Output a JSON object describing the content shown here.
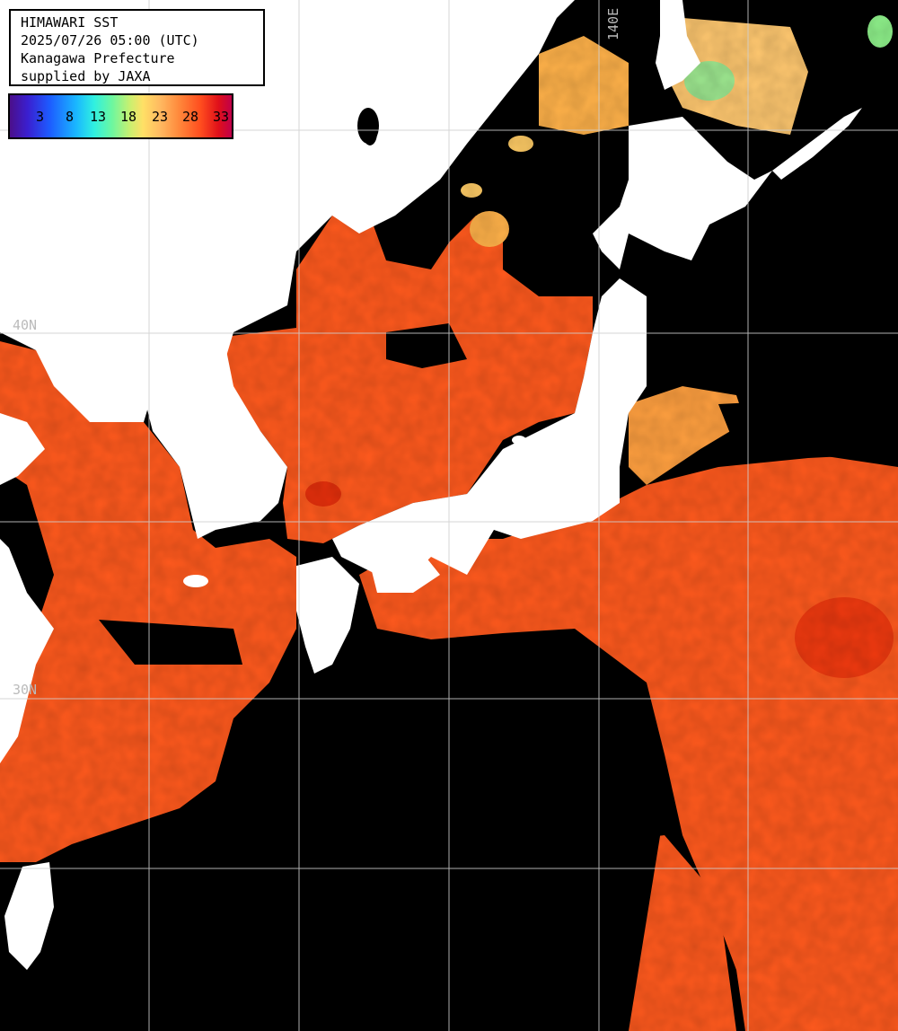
{
  "header": {
    "line1": "HIMAWARI SST",
    "line2": "2025/07/26 05:00 (UTC)",
    "line3": "Kanagawa Prefecture",
    "line4": "supplied by JAXA"
  },
  "legend": {
    "labels": [
      "3",
      "8",
      "13",
      "18",
      "23",
      "28",
      "33"
    ],
    "colors": [
      "#4b0f8a",
      "#1d5cff",
      "#30f0e0",
      "#6cf7a0",
      "#ffe066",
      "#ff8a3c",
      "#e0101a"
    ]
  },
  "grid_labels": {
    "lon_140": "140E",
    "lat_40": "40N",
    "lat_30": "30N"
  },
  "colors": {
    "land": "#ffffff",
    "cloud": "#000000",
    "warm_sea": "#ff5a1e",
    "hot_sea": "#f03a10",
    "cool_sea": "#ffb24a",
    "grid": "#d0d0d0"
  }
}
